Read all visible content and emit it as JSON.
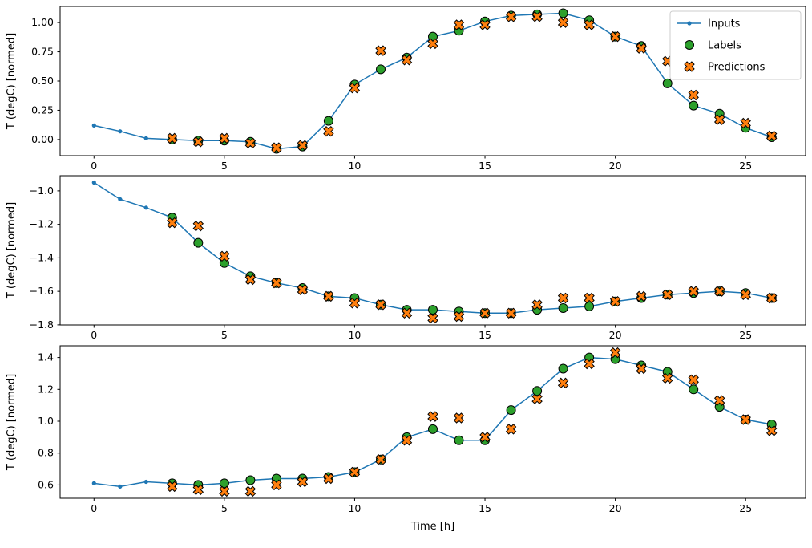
{
  "figure": {
    "xlabel": "Time [h]",
    "x_ticks": [
      0,
      5,
      10,
      15,
      20,
      25
    ],
    "x_tick_labels": [
      "0",
      "5",
      "10",
      "15",
      "20",
      "25"
    ],
    "xlim": [
      -1.3,
      27.3
    ],
    "legend_position": "upper right",
    "legend": [
      {
        "label": "Inputs",
        "type": "line-dot",
        "color": "#1f77b4"
      },
      {
        "label": "Labels",
        "type": "circle",
        "color": "#2ca02c"
      },
      {
        "label": "Predictions",
        "type": "x",
        "color": "#ff7f0e"
      }
    ]
  },
  "chart_data": [
    {
      "type": "line",
      "title": "",
      "xlabel": "",
      "ylabel": "T (degC) [normed]",
      "ylim": [
        -0.138,
        1.138
      ],
      "y_ticks": [
        0.0,
        0.25,
        0.5,
        0.75,
        1.0
      ],
      "y_tick_labels": [
        "0.00",
        "0.25",
        "0.50",
        "0.75",
        "1.00"
      ],
      "series": [
        {
          "name": "Inputs",
          "x": [
            0,
            1,
            2,
            3,
            4,
            5,
            6,
            7,
            8,
            9,
            10,
            11,
            12,
            13,
            14,
            15,
            16,
            17,
            18,
            19,
            20,
            21,
            22,
            23,
            24,
            25,
            26
          ],
          "values": [
            0.12,
            0.07,
            0.01,
            0.0,
            -0.01,
            -0.01,
            -0.02,
            -0.08,
            -0.06,
            0.16,
            0.47,
            0.6,
            0.7,
            0.88,
            0.93,
            1.01,
            1.06,
            1.07,
            1.08,
            1.02,
            0.88,
            0.8,
            0.48,
            0.29,
            0.22,
            0.1,
            0.02
          ]
        },
        {
          "name": "Labels",
          "x": [
            3,
            4,
            5,
            6,
            7,
            8,
            9,
            10,
            11,
            12,
            13,
            14,
            15,
            16,
            17,
            18,
            19,
            20,
            21,
            22,
            23,
            24,
            25,
            26
          ],
          "values": [
            0.0,
            -0.01,
            -0.01,
            -0.02,
            -0.08,
            -0.06,
            0.16,
            0.47,
            0.6,
            0.7,
            0.88,
            0.93,
            1.01,
            1.06,
            1.07,
            1.08,
            1.02,
            0.88,
            0.8,
            0.48,
            0.29,
            0.22,
            0.1,
            0.02
          ]
        },
        {
          "name": "Predictions",
          "x": [
            3,
            4,
            5,
            6,
            7,
            8,
            9,
            10,
            11,
            12,
            13,
            14,
            15,
            16,
            17,
            18,
            19,
            20,
            21,
            22,
            23,
            24,
            25,
            26
          ],
          "values": [
            0.01,
            -0.02,
            0.01,
            -0.03,
            -0.07,
            -0.05,
            0.07,
            0.44,
            0.76,
            0.68,
            0.82,
            0.98,
            0.98,
            1.05,
            1.05,
            1.0,
            0.98,
            0.88,
            0.78,
            0.67,
            0.38,
            0.17,
            0.14,
            0.03
          ]
        }
      ]
    },
    {
      "type": "line",
      "title": "",
      "xlabel": "",
      "ylabel": "T (degC) [normed]",
      "ylim": [
        -1.8005,
        -0.9095
      ],
      "y_ticks": [
        -1.8,
        -1.6,
        -1.4,
        -1.2,
        -1.0
      ],
      "y_tick_labels": [
        "−1.8",
        "−1.6",
        "−1.4",
        "−1.2",
        "−1.0"
      ],
      "series": [
        {
          "name": "Inputs",
          "x": [
            0,
            1,
            2,
            3,
            4,
            5,
            6,
            7,
            8,
            9,
            10,
            11,
            12,
            13,
            14,
            15,
            16,
            17,
            18,
            19,
            20,
            21,
            22,
            23,
            24,
            25,
            26
          ],
          "values": [
            -0.95,
            -1.05,
            -1.1,
            -1.16,
            -1.31,
            -1.43,
            -1.51,
            -1.55,
            -1.58,
            -1.63,
            -1.64,
            -1.68,
            -1.71,
            -1.71,
            -1.72,
            -1.73,
            -1.73,
            -1.71,
            -1.7,
            -1.69,
            -1.66,
            -1.64,
            -1.62,
            -1.61,
            -1.6,
            -1.61,
            -1.64
          ]
        },
        {
          "name": "Labels",
          "x": [
            3,
            4,
            5,
            6,
            7,
            8,
            9,
            10,
            11,
            12,
            13,
            14,
            15,
            16,
            17,
            18,
            19,
            20,
            21,
            22,
            23,
            24,
            25,
            26
          ],
          "values": [
            -1.16,
            -1.31,
            -1.43,
            -1.51,
            -1.55,
            -1.58,
            -1.63,
            -1.64,
            -1.68,
            -1.71,
            -1.71,
            -1.72,
            -1.73,
            -1.73,
            -1.71,
            -1.7,
            -1.69,
            -1.66,
            -1.64,
            -1.62,
            -1.61,
            -1.6,
            -1.61,
            -1.64
          ]
        },
        {
          "name": "Predictions",
          "x": [
            3,
            4,
            5,
            6,
            7,
            8,
            9,
            10,
            11,
            12,
            13,
            14,
            15,
            16,
            17,
            18,
            19,
            20,
            21,
            22,
            23,
            24,
            25,
            26
          ],
          "values": [
            -1.19,
            -1.21,
            -1.39,
            -1.53,
            -1.55,
            -1.59,
            -1.63,
            -1.67,
            -1.68,
            -1.73,
            -1.76,
            -1.75,
            -1.73,
            -1.73,
            -1.68,
            -1.64,
            -1.64,
            -1.66,
            -1.63,
            -1.62,
            -1.6,
            -1.6,
            -1.62,
            -1.64
          ]
        }
      ]
    },
    {
      "type": "line",
      "title": "",
      "xlabel": "Time [h]",
      "ylabel": "T (degC) [normed]",
      "ylim": [
        0.5165,
        1.4735
      ],
      "y_ticks": [
        0.6,
        0.8,
        1.0,
        1.2,
        1.4
      ],
      "y_tick_labels": [
        "0.6",
        "0.8",
        "1.0",
        "1.2",
        "1.4"
      ],
      "series": [
        {
          "name": "Inputs",
          "x": [
            0,
            1,
            2,
            3,
            4,
            5,
            6,
            7,
            8,
            9,
            10,
            11,
            12,
            13,
            14,
            15,
            16,
            17,
            18,
            19,
            20,
            21,
            22,
            23,
            24,
            25,
            26
          ],
          "values": [
            0.61,
            0.59,
            0.62,
            0.61,
            0.6,
            0.61,
            0.63,
            0.64,
            0.64,
            0.65,
            0.68,
            0.76,
            0.9,
            0.95,
            0.88,
            0.88,
            1.07,
            1.19,
            1.33,
            1.4,
            1.39,
            1.35,
            1.31,
            1.2,
            1.09,
            1.01,
            0.98
          ]
        },
        {
          "name": "Labels",
          "x": [
            3,
            4,
            5,
            6,
            7,
            8,
            9,
            10,
            11,
            12,
            13,
            14,
            15,
            16,
            17,
            18,
            19,
            20,
            21,
            22,
            23,
            24,
            25,
            26
          ],
          "values": [
            0.61,
            0.6,
            0.61,
            0.63,
            0.64,
            0.64,
            0.65,
            0.68,
            0.76,
            0.9,
            0.95,
            0.88,
            0.88,
            1.07,
            1.19,
            1.33,
            1.4,
            1.39,
            1.35,
            1.31,
            1.2,
            1.09,
            1.01,
            0.98
          ]
        },
        {
          "name": "Predictions",
          "x": [
            3,
            4,
            5,
            6,
            7,
            8,
            9,
            10,
            11,
            12,
            13,
            14,
            15,
            16,
            17,
            18,
            19,
            20,
            21,
            22,
            23,
            24,
            25,
            26
          ],
          "values": [
            0.59,
            0.57,
            0.56,
            0.56,
            0.6,
            0.62,
            0.64,
            0.68,
            0.76,
            0.88,
            1.03,
            1.02,
            0.9,
            0.95,
            1.14,
            1.24,
            1.36,
            1.43,
            1.33,
            1.27,
            1.26,
            1.13,
            1.01,
            0.94
          ]
        }
      ]
    }
  ]
}
